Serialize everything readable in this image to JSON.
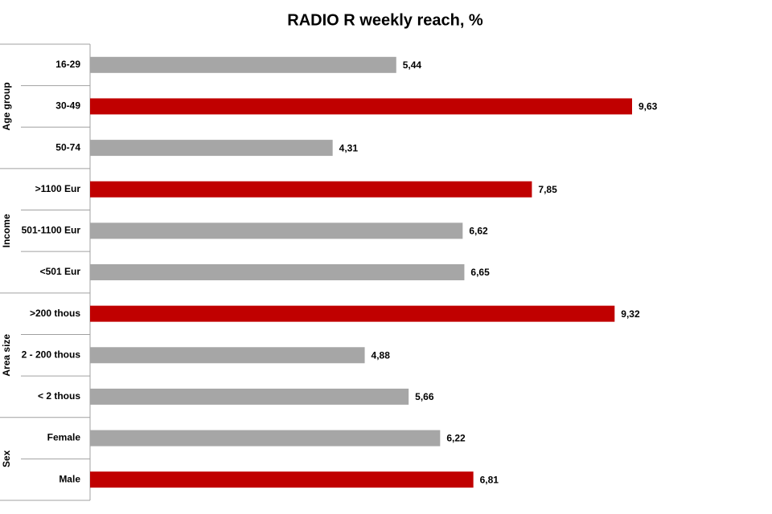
{
  "chart_data": {
    "type": "grouped-hbar",
    "title": "RADIO R weekly reach, %",
    "groups": [
      {
        "name": "Age group",
        "categories": [
          "16-29",
          "30-49",
          "50-74"
        ],
        "values": [
          5.44,
          9.63,
          4.31
        ],
        "value_labels": [
          "5,44",
          "9,63",
          "4,31"
        ],
        "colors": [
          "#a6a6a6",
          "#c00000",
          "#a6a6a6"
        ]
      },
      {
        "name": "Income",
        "categories": [
          ">1100 Eur",
          "501-1100 Eur",
          "<501 Eur"
        ],
        "values": [
          7.85,
          6.62,
          6.65
        ],
        "value_labels": [
          "7,85",
          "6,62",
          "6,65"
        ],
        "colors": [
          "#c00000",
          "#a6a6a6",
          "#a6a6a6"
        ]
      },
      {
        "name": "Area size",
        "categories": [
          ">200 thous",
          "2 - 200 thous",
          "< 2 thous"
        ],
        "values": [
          9.32,
          4.88,
          5.66
        ],
        "value_labels": [
          "9,32",
          "4,88",
          "5,66"
        ],
        "colors": [
          "#c00000",
          "#a6a6a6",
          "#a6a6a6"
        ]
      },
      {
        "name": "Sex",
        "categories": [
          "Female",
          "Male"
        ],
        "values": [
          6.22,
          6.81
        ],
        "value_labels": [
          "6,22",
          "6,81"
        ],
        "colors": [
          "#a6a6a6",
          "#c00000"
        ]
      }
    ]
  }
}
